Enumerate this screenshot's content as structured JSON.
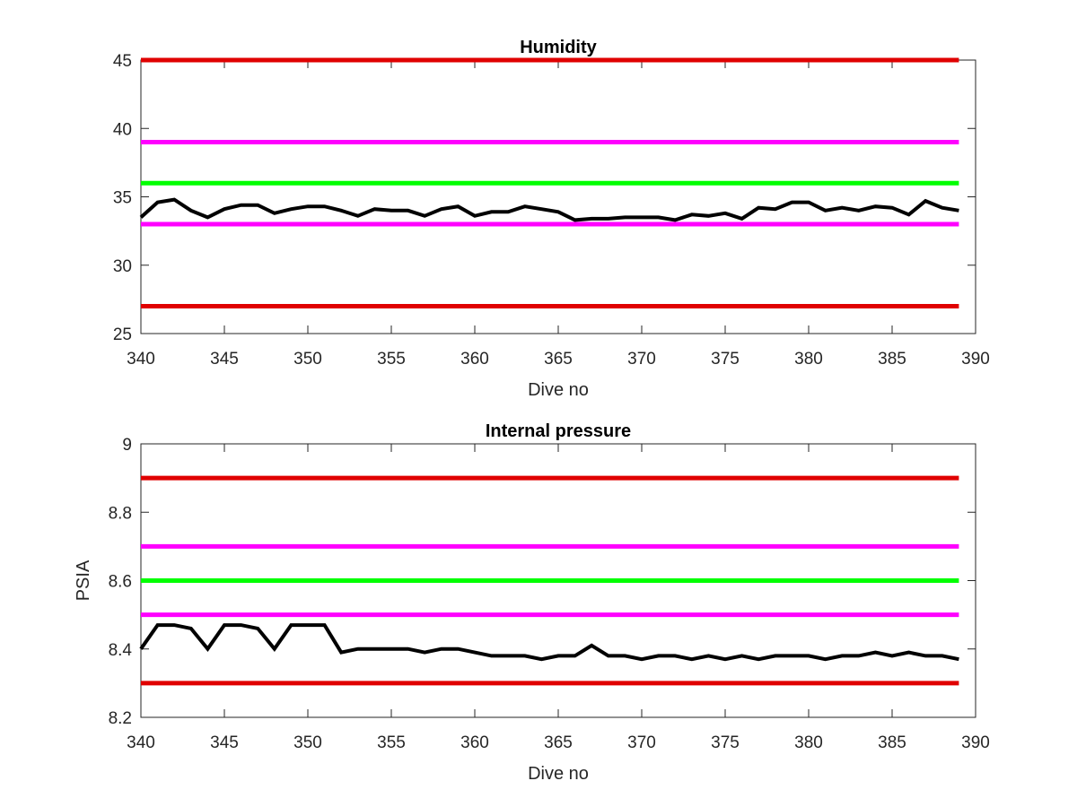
{
  "chart_data": [
    {
      "type": "line",
      "title": "Humidity",
      "xlabel": "Dive no",
      "ylabel": "",
      "xlim": [
        340,
        390
      ],
      "ylim": [
        25,
        45
      ],
      "xticks": [
        "340",
        "345",
        "350",
        "355",
        "360",
        "365",
        "370",
        "375",
        "380",
        "385",
        "390"
      ],
      "yticks": [
        "25",
        "30",
        "35",
        "40",
        "45"
      ],
      "grid": false,
      "reference_lines": [
        {
          "y": 45,
          "color": "#e00000",
          "x": [
            340,
            389
          ]
        },
        {
          "y": 39,
          "color": "#ff00ff",
          "x": [
            340,
            389
          ]
        },
        {
          "y": 36,
          "color": "#00ff00",
          "x": [
            340,
            389
          ]
        },
        {
          "y": 33,
          "color": "#ff00ff",
          "x": [
            340,
            389
          ]
        },
        {
          "y": 27,
          "color": "#e00000",
          "x": [
            340,
            389
          ]
        }
      ],
      "series": [
        {
          "color": "#000000",
          "x": [
            340,
            341,
            342,
            343,
            344,
            345,
            346,
            347,
            348,
            349,
            350,
            351,
            352,
            353,
            354,
            355,
            356,
            357,
            358,
            359,
            360,
            361,
            362,
            363,
            364,
            365,
            366,
            367,
            368,
            369,
            370,
            371,
            372,
            373,
            374,
            375,
            376,
            377,
            378,
            379,
            380,
            381,
            382,
            383,
            384,
            385,
            386,
            387,
            388,
            389
          ],
          "values": [
            33.5,
            34.6,
            34.8,
            34.0,
            33.5,
            34.1,
            34.4,
            34.4,
            33.8,
            34.1,
            34.3,
            34.3,
            34.0,
            33.6,
            34.1,
            34.0,
            34.0,
            33.6,
            34.1,
            34.3,
            33.6,
            33.9,
            33.9,
            34.3,
            34.1,
            33.9,
            33.3,
            33.4,
            33.4,
            33.5,
            33.5,
            33.5,
            33.3,
            33.7,
            33.6,
            33.8,
            33.4,
            34.2,
            34.1,
            34.6,
            34.6,
            34.0,
            34.2,
            34.0,
            34.3,
            34.2,
            33.7,
            34.7,
            34.2,
            34.0
          ]
        }
      ]
    },
    {
      "type": "line",
      "title": "Internal pressure",
      "xlabel": "Dive no",
      "ylabel": "PSIA",
      "xlim": [
        340,
        390
      ],
      "ylim": [
        8.2,
        9.0
      ],
      "xticks": [
        "340",
        "345",
        "350",
        "355",
        "360",
        "365",
        "370",
        "375",
        "380",
        "385",
        "390"
      ],
      "yticks": [
        "8.2",
        "8.4",
        "8.6",
        "8.8",
        "9"
      ],
      "grid": false,
      "reference_lines": [
        {
          "y": 8.9,
          "color": "#e00000",
          "x": [
            340,
            389
          ]
        },
        {
          "y": 8.7,
          "color": "#ff00ff",
          "x": [
            340,
            389
          ]
        },
        {
          "y": 8.6,
          "color": "#00ff00",
          "x": [
            340,
            389
          ]
        },
        {
          "y": 8.5,
          "color": "#ff00ff",
          "x": [
            340,
            389
          ]
        },
        {
          "y": 8.3,
          "color": "#e00000",
          "x": [
            340,
            389
          ]
        }
      ],
      "series": [
        {
          "color": "#000000",
          "x": [
            340,
            341,
            342,
            343,
            344,
            345,
            346,
            347,
            348,
            349,
            350,
            351,
            352,
            353,
            354,
            355,
            356,
            357,
            358,
            359,
            360,
            361,
            362,
            363,
            364,
            365,
            366,
            367,
            368,
            369,
            370,
            371,
            372,
            373,
            374,
            375,
            376,
            377,
            378,
            379,
            380,
            381,
            382,
            383,
            384,
            385,
            386,
            387,
            388,
            389
          ],
          "values": [
            8.4,
            8.47,
            8.47,
            8.46,
            8.4,
            8.47,
            8.47,
            8.46,
            8.4,
            8.47,
            8.47,
            8.47,
            8.39,
            8.4,
            8.4,
            8.4,
            8.4,
            8.39,
            8.4,
            8.4,
            8.39,
            8.38,
            8.38,
            8.38,
            8.37,
            8.38,
            8.38,
            8.41,
            8.38,
            8.38,
            8.37,
            8.38,
            8.38,
            8.37,
            8.38,
            8.37,
            8.38,
            8.37,
            8.38,
            8.38,
            8.38,
            8.37,
            8.38,
            8.38,
            8.39,
            8.38,
            8.39,
            8.38,
            8.38,
            8.37
          ]
        }
      ]
    }
  ]
}
